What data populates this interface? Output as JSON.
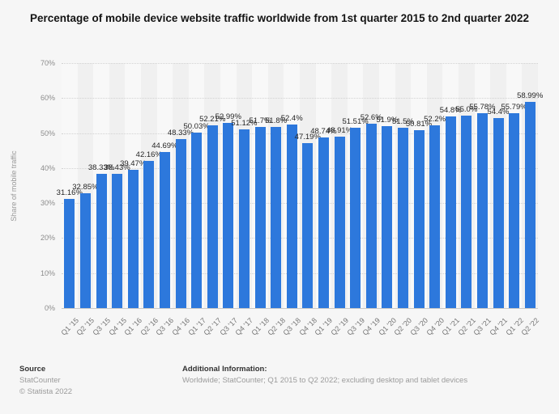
{
  "title": "Percentage of mobile device website traffic worldwide from 1st quarter 2015 to 2nd quarter 2022",
  "chart_data": {
    "type": "bar",
    "title": "Percentage of mobile device website traffic worldwide from 1st quarter 2015 to 2nd quarter 2022",
    "categories": [
      "Q1 '15",
      "Q2 '15",
      "Q3 '15",
      "Q4 '15",
      "Q1 '16",
      "Q2 '16",
      "Q3 '16",
      "Q4 '16",
      "Q1 '17",
      "Q2 '17",
      "Q3 '17",
      "Q4 '17",
      "Q1 '18",
      "Q2 '18",
      "Q3 '18",
      "Q4 '18",
      "Q1 '19",
      "Q2 '19",
      "Q3 '19",
      "Q4 '19",
      "Q1 '20",
      "Q2 '20",
      "Q3 '20",
      "Q4 '20",
      "Q1 '21",
      "Q2 '21",
      "Q3 '21",
      "Q4 '21",
      "Q1 '22",
      "Q2 '22"
    ],
    "values": [
      31.16,
      32.85,
      38.33,
      38.43,
      39.47,
      42.16,
      44.69,
      48.33,
      50.03,
      52.21,
      52.99,
      51.12,
      51.7,
      51.8,
      52.4,
      47.19,
      48.74,
      48.91,
      51.51,
      52.6,
      51.9,
      51.5,
      50.81,
      52.2,
      54.8,
      55.0,
      55.78,
      54.4,
      55.79,
      58.99
    ],
    "value_labels": [
      "31.16%",
      "32.85%",
      "38.33%",
      "38.43%",
      "39.47%",
      "42.16%",
      "44.69%",
      "48.33%",
      "50.03%",
      "52.21%",
      "52.99%",
      "51.12%",
      "51.7%",
      "51.8%",
      "52.4%",
      "47.19%",
      "48.74%",
      "48.91%",
      "51.51%",
      "52.6%",
      "51.9%",
      "51.5%",
      "50.81%",
      "52.2%",
      "54.8%",
      "55.0%",
      "55.78%",
      "54.4%",
      "55.79%",
      "58.99%"
    ],
    "xlabel": "",
    "ylabel": "Share of mobile traffic",
    "ylim": [
      0,
      70
    ],
    "yticks": [
      0,
      10,
      20,
      30,
      40,
      50,
      60,
      70
    ],
    "ytick_labels": [
      "0%",
      "10%",
      "20%",
      "30%",
      "40%",
      "50%",
      "60%",
      "70%"
    ],
    "grid": "horizontal-dotted",
    "legend": "none",
    "bar_color": "#2d78dc"
  },
  "colors": {
    "background": "#f6f6f6",
    "band_dark": "#f0f0f0",
    "band_light": "#f8f8f8",
    "gridline": "#d2d2d2",
    "bar": "#2d78dc"
  },
  "footer": {
    "source_label": "Source",
    "source_value": "StatCounter",
    "copyright": "© Statista 2022",
    "additional_info_label": "Additional Information:",
    "additional_info_value": "Worldwide; StatCounter; Q1 2015 to Q2 2022; excluding desktop and tablet devices"
  }
}
